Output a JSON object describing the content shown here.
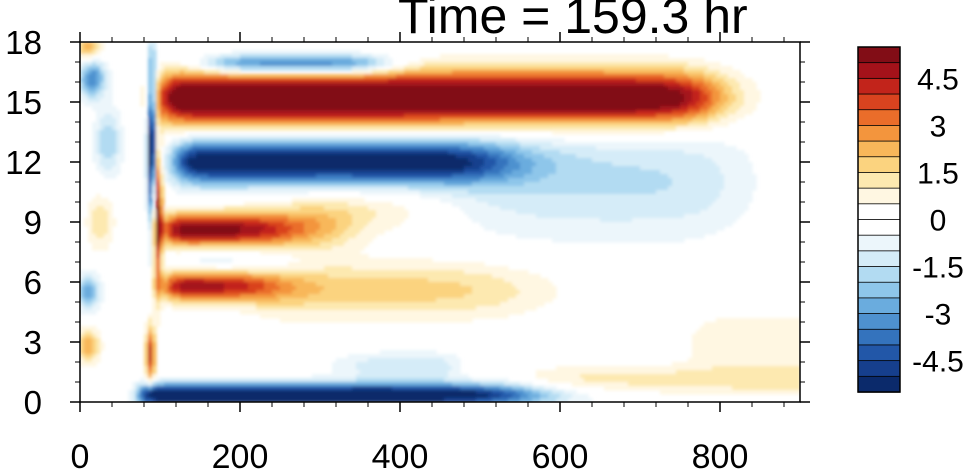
{
  "chart_data": {
    "type": "heatmap",
    "title": "Time = 159.3 hr",
    "xlabel": "",
    "ylabel": "",
    "xlim": [
      0,
      900
    ],
    "ylim": [
      0,
      18
    ],
    "x_ticks": [
      0,
      200,
      400,
      600,
      800
    ],
    "y_ticks": [
      0,
      3,
      6,
      9,
      12,
      15,
      18
    ],
    "colorbar": {
      "levels": [
        -5.5,
        -5,
        -4.5,
        -4,
        -3.5,
        -3,
        -2.5,
        -2,
        -1.5,
        -1,
        -0.5,
        0,
        0.5,
        1,
        1.5,
        2,
        2.5,
        3,
        3.5,
        4,
        4.5,
        5,
        5.5
      ],
      "tick_values": [
        4.5,
        3,
        1.5,
        0,
        -1.5,
        -3,
        -4.5
      ],
      "tick_labels": [
        "4.5",
        "3",
        "1.5",
        "0",
        "-1.5",
        "-3",
        "-4.5"
      ],
      "colors_low_to_high": [
        "#0b2a6b",
        "#163f8d",
        "#2257a8",
        "#3473bd",
        "#4e91cf",
        "#6aacde",
        "#8ec6ea",
        "#b2dbf2",
        "#d5ecf8",
        "#ecf6fb",
        "#ffffff",
        "#ffffff",
        "#fff7e2",
        "#fde9b0",
        "#fbd37f",
        "#f8b75a",
        "#f3953d",
        "#ea6d2a",
        "#d9431f",
        "#c2241b",
        "#a4121a",
        "#820d16"
      ]
    },
    "features": [
      {
        "name": "upper positive band",
        "sign": "positive",
        "x_range": [
          90,
          810
        ],
        "y_center": 15.2,
        "peak": 6
      },
      {
        "name": "upper negative band",
        "sign": "negative",
        "x_range": [
          120,
          560
        ],
        "y_center": 12.0,
        "peak": -5.5
      },
      {
        "name": "positive band near 8.5",
        "sign": "positive",
        "x_range": [
          110,
          330
        ],
        "y_center": 8.6,
        "peak": 5
      },
      {
        "name": "positive band near 5.8",
        "sign": "positive",
        "x_range": [
          110,
          300
        ],
        "y_center": 5.8,
        "peak": 4.5
      },
      {
        "name": "surface negative band",
        "sign": "negative",
        "x_range": [
          70,
          600
        ],
        "y_center": 0.4,
        "peak": -5.5
      },
      {
        "name": "vertical dipole",
        "sign": "mixed",
        "x_range": [
          80,
          100
        ],
        "y_center": 9,
        "peak": 6
      }
    ]
  }
}
